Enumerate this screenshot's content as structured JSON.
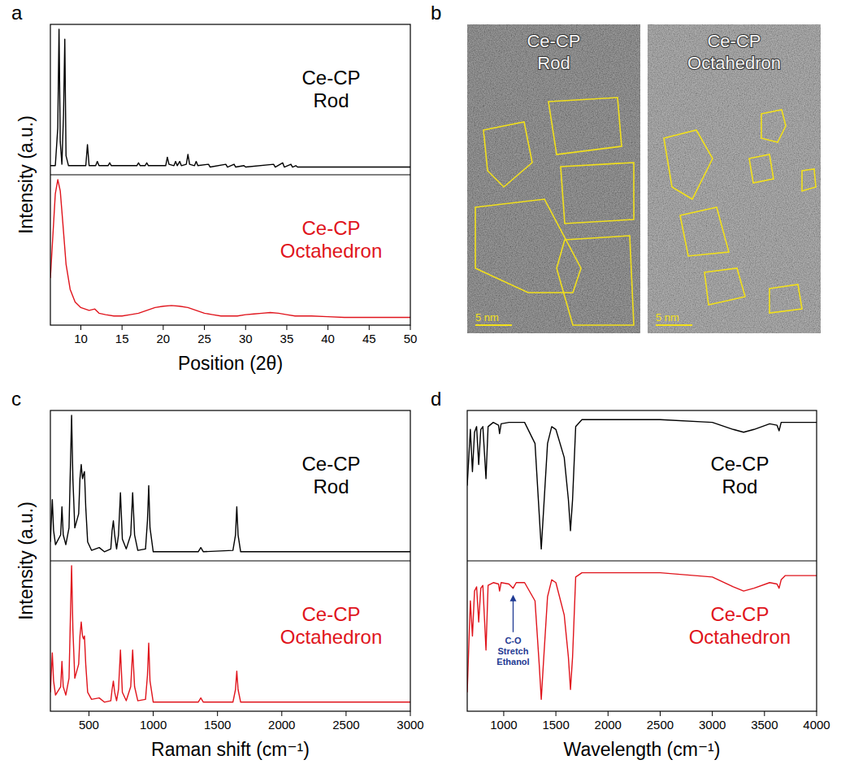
{
  "chart_data": [
    {
      "type": "line",
      "panel_label": "a",
      "xlabel": "Position (2θ)",
      "ylabel": "Intensity (a.u.)",
      "xlim": [
        6.3,
        50
      ],
      "xticks": [
        10,
        15,
        20,
        25,
        30,
        35,
        40,
        45,
        50
      ],
      "ylim": [
        0,
        100
      ],
      "tick_labels": "x",
      "series": [
        {
          "name": "Ce-CP Rod",
          "color": "#000000",
          "x": [
            6.3,
            6.9,
            7.2,
            7.35,
            7.5,
            7.7,
            7.9,
            8.05,
            8.2,
            8.5,
            10.6,
            10.8,
            11.0,
            11.8,
            12.0,
            12.2,
            13.3,
            13.5,
            13.7,
            16.8,
            17.0,
            17.2,
            17.8,
            18.0,
            18.2,
            20.3,
            20.5,
            20.7,
            21.3,
            21.5,
            21.7,
            22.0,
            22.2,
            22.8,
            23.0,
            23.2,
            23.8,
            24.0,
            24.2,
            25.5,
            25.7,
            27.6,
            27.8,
            28.6,
            28.8,
            29.8,
            30.0,
            33.4,
            33.6,
            34.5,
            34.7,
            35.5,
            35.7,
            36.1,
            36.3,
            40.0,
            50.0
          ],
          "values": [
            3,
            3,
            30,
            100,
            20,
            4,
            40,
            93,
            10,
            3,
            3,
            18,
            3,
            3,
            6,
            3,
            3,
            5,
            3,
            3,
            5,
            3,
            3,
            5,
            3,
            3,
            9,
            4,
            3,
            6,
            3,
            6,
            3,
            4,
            11,
            4,
            3,
            6,
            3,
            4,
            2,
            4,
            2,
            4,
            2,
            3,
            2,
            4,
            2,
            5,
            2,
            4,
            2,
            3,
            2,
            2,
            2
          ]
        },
        {
          "name": "Ce-CP Octahedron",
          "color": "#e0141c",
          "x": [
            6.3,
            6.6,
            6.9,
            7.2,
            7.5,
            7.8,
            8.2,
            8.7,
            9.3,
            10,
            11,
            11.7,
            12.2,
            13,
            14,
            15,
            16,
            17,
            18,
            19,
            20,
            21,
            22,
            23,
            24,
            25,
            26,
            27,
            28,
            29,
            30,
            31,
            32,
            33,
            34,
            35,
            36,
            38,
            40,
            42,
            45,
            50
          ],
          "values": [
            30,
            60,
            90,
            100,
            92,
            70,
            40,
            22,
            13,
            9,
            7,
            8,
            5,
            4,
            3,
            3,
            4,
            5,
            7,
            9,
            10,
            10.5,
            10,
            9,
            7,
            5,
            4,
            3,
            3,
            3,
            4,
            4.5,
            5,
            5.5,
            5,
            4,
            3,
            3,
            2.5,
            2,
            2,
            2
          ]
        }
      ]
    },
    {
      "type": "line",
      "panel_label": "c",
      "xlabel": "Raman shift (cm⁻¹)",
      "ylabel": "Intensity (a.u.)",
      "xlim": [
        200,
        3000
      ],
      "xticks": [
        500,
        1000,
        1500,
        2000,
        2500,
        3000
      ],
      "ylim": [
        0,
        100
      ],
      "tick_labels": "x",
      "series": [
        {
          "name": "Ce-CP Rod",
          "color": "#000000",
          "x": [
            200,
            205,
            215,
            225,
            240,
            280,
            290,
            300,
            320,
            345,
            355,
            365,
            375,
            390,
            420,
            430,
            440,
            450,
            458,
            465,
            475,
            490,
            520,
            580,
            620,
            670,
            680,
            690,
            700,
            715,
            730,
            745,
            760,
            790,
            825,
            840,
            855,
            880,
            940,
            955,
            965,
            975,
            1000,
            1350,
            1370,
            1390,
            1620,
            1640,
            1650,
            1660,
            1680,
            2000,
            3000
          ],
          "values": [
            10,
            20,
            40,
            18,
            8,
            15,
            35,
            15,
            8,
            20,
            60,
            100,
            55,
            20,
            30,
            55,
            65,
            55,
            58,
            60,
            35,
            10,
            4,
            6,
            3,
            5,
            18,
            25,
            15,
            5,
            15,
            45,
            12,
            5,
            15,
            45,
            15,
            4,
            5,
            25,
            50,
            20,
            3,
            3,
            6,
            3,
            4,
            15,
            35,
            15,
            3,
            3,
            3
          ]
        },
        {
          "name": "Ce-CP Octahedron",
          "color": "#e0141c",
          "x": [
            200,
            205,
            215,
            225,
            240,
            280,
            290,
            300,
            320,
            345,
            355,
            365,
            375,
            390,
            420,
            430,
            440,
            450,
            458,
            465,
            475,
            490,
            520,
            580,
            620,
            670,
            680,
            690,
            700,
            715,
            730,
            745,
            760,
            790,
            825,
            840,
            855,
            880,
            940,
            955,
            965,
            975,
            1000,
            1350,
            1370,
            1390,
            1620,
            1640,
            1650,
            1660,
            1680,
            2000,
            3000
          ],
          "values": [
            10,
            20,
            38,
            18,
            8,
            14,
            32,
            14,
            8,
            20,
            60,
            100,
            55,
            20,
            30,
            50,
            60,
            50,
            48,
            50,
            30,
            10,
            5,
            6,
            3,
            4,
            12,
            18,
            10,
            4,
            12,
            40,
            10,
            4,
            14,
            40,
            14,
            4,
            5,
            22,
            45,
            18,
            3,
            3,
            6,
            3,
            3,
            12,
            25,
            12,
            3,
            3,
            3
          ]
        }
      ]
    },
    {
      "type": "line",
      "panel_label": "d",
      "xlabel": "Wavelength (cm⁻¹)",
      "xlim": [
        650,
        4000
      ],
      "xticks": [
        1000,
        1500,
        2000,
        2500,
        3000,
        3500,
        4000
      ],
      "ylim": [
        0,
        100
      ],
      "tick_labels": "x",
      "annotations": [
        {
          "text": "C-O Stretch Ethanol",
          "x": 1090
        }
      ],
      "series": [
        {
          "name": "Ce-CP Rod",
          "color": "#000000",
          "x": [
            650,
            680,
            700,
            720,
            740,
            760,
            780,
            800,
            830,
            850,
            900,
            950,
            960,
            975,
            1050,
            1200,
            1300,
            1340,
            1360,
            1380,
            1420,
            1460,
            1500,
            1580,
            1620,
            1640,
            1660,
            1690,
            1750,
            2500,
            3000,
            3200,
            3300,
            3400,
            3550,
            3620,
            3640,
            3660,
            4000
          ],
          "values": [
            50,
            90,
            60,
            88,
            92,
            65,
            90,
            92,
            55,
            92,
            95,
            93,
            87,
            94,
            95,
            95,
            80,
            30,
            5,
            30,
            80,
            92,
            90,
            70,
            40,
            18,
            40,
            92,
            97,
            97,
            95,
            90,
            88,
            90,
            94,
            93,
            89,
            95,
            95
          ]
        },
        {
          "name": "Ce-CP Octahedron",
          "color": "#e0141c",
          "x": [
            650,
            680,
            700,
            720,
            740,
            760,
            780,
            800,
            830,
            850,
            900,
            950,
            960,
            975,
            1050,
            1090,
            1120,
            1200,
            1300,
            1340,
            1360,
            1380,
            1420,
            1460,
            1500,
            1580,
            1620,
            1640,
            1660,
            1690,
            1750,
            2500,
            3000,
            3200,
            3300,
            3400,
            3550,
            3620,
            3640,
            3660,
            3700,
            4000
          ],
          "values": [
            10,
            75,
            50,
            82,
            85,
            60,
            84,
            86,
            40,
            86,
            88,
            87,
            82,
            88,
            87,
            84,
            88,
            88,
            75,
            30,
            5,
            30,
            78,
            90,
            88,
            65,
            35,
            12,
            35,
            92,
            95,
            95,
            92,
            85,
            82,
            84,
            88,
            87,
            84,
            90,
            93,
            93
          ]
        }
      ]
    }
  ],
  "image_panel": {
    "panel_label": "b",
    "images": [
      {
        "title": "Ce-CP Rod",
        "scale_bar": "5 nm"
      },
      {
        "title": "Ce-CP Octahedron",
        "scale_bar": "5 nm"
      }
    ]
  }
}
